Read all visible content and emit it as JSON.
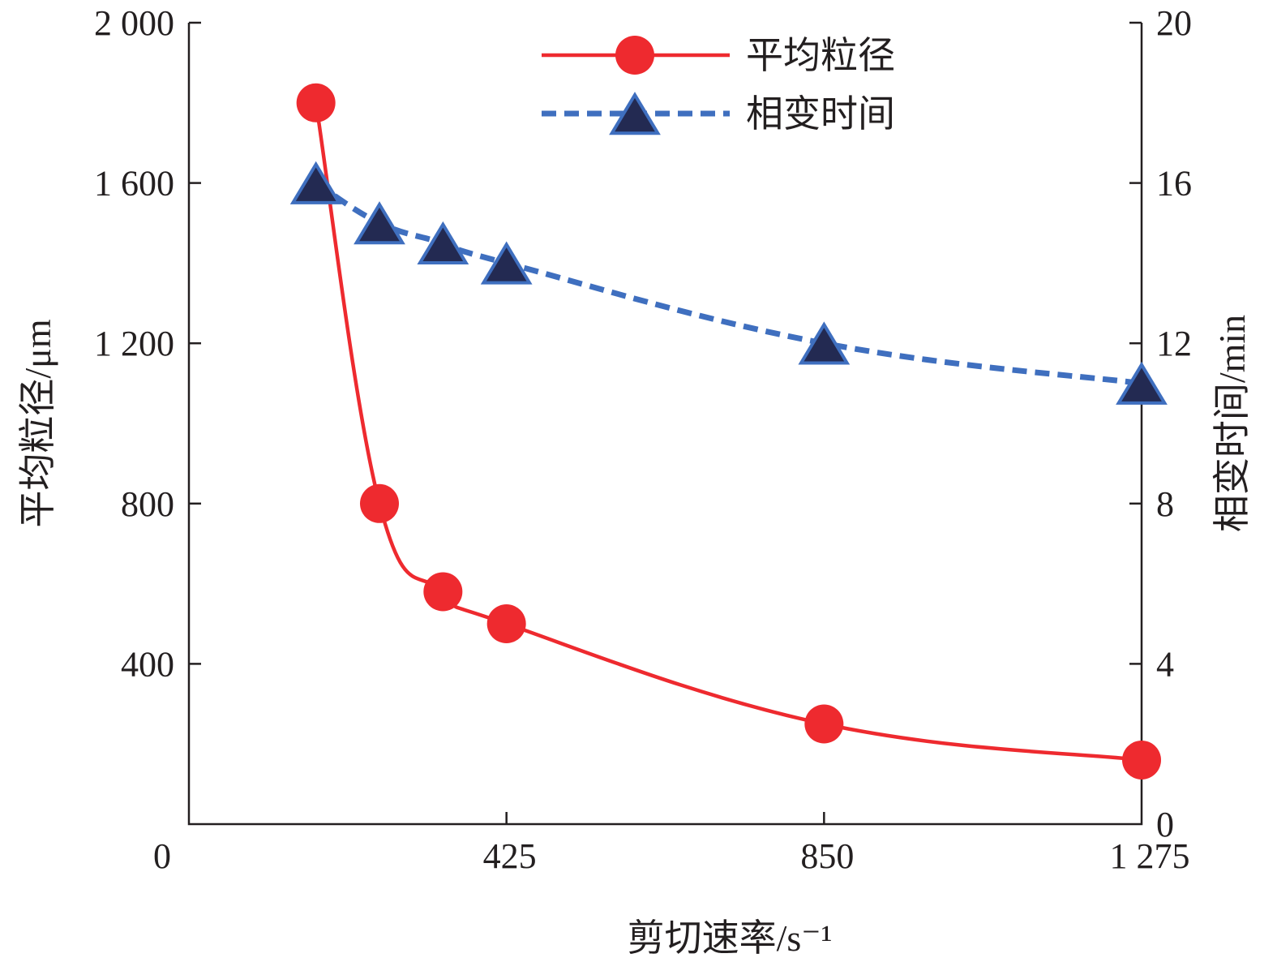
{
  "chart_data": {
    "type": "line",
    "title": "",
    "xlabel": "剪切速率/s⁻¹",
    "ylabel": "平均粒径/μm",
    "y2label": "相变时间/min",
    "xlim": [
      0,
      1275
    ],
    "ylim": [
      0,
      2000
    ],
    "y2lim": [
      0,
      20
    ],
    "xticks": [
      0,
      425,
      850,
      1275
    ],
    "xtick_labels": [
      "0",
      "425",
      "850",
      "1 275"
    ],
    "yticks": [
      400,
      800,
      1200,
      1600,
      2000
    ],
    "ytick_labels": [
      "400",
      "800",
      "1 200",
      "1 600",
      "2 000"
    ],
    "y2ticks": [
      0,
      4,
      8,
      12,
      16,
      20
    ],
    "y2tick_labels": [
      "0",
      "4",
      "8",
      "12",
      "16",
      "20"
    ],
    "grid": false,
    "legend_position": "top-center",
    "x": [
      170,
      255,
      340,
      425,
      850,
      1275
    ],
    "series": [
      {
        "name": "平均粒径",
        "axis": "left",
        "values": [
          1800,
          800,
          580,
          500,
          250,
          160
        ],
        "color": "#ee2a2f",
        "marker": "circle",
        "line": "solid"
      },
      {
        "name": "相变时间",
        "axis": "right",
        "values": [
          16,
          15,
          14.5,
          14,
          12,
          11
        ],
        "color": "#3f6fbf",
        "marker": "triangle",
        "marker_fill": "#232a52",
        "line": "dashed"
      }
    ]
  }
}
